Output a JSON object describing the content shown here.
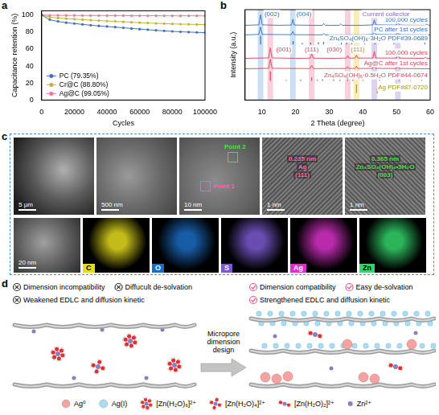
{
  "chart_data": [
    {
      "panel": "a",
      "type": "line",
      "x_label": "Cycles",
      "y_label": "Capacitance retention (%)",
      "x": [
        0,
        5000,
        10000,
        15000,
        20000,
        25000,
        30000,
        35000,
        40000,
        45000,
        50000,
        55000,
        60000,
        65000,
        70000,
        75000,
        80000,
        85000,
        90000,
        95000,
        100000
      ],
      "series": [
        {
          "name": "PC (79.35%)",
          "color": "#3f6fc8",
          "marker": "circle",
          "values": [
            100,
            94.5,
            92.5,
            91,
            90,
            89,
            88,
            87.2,
            86.5,
            85.8,
            85,
            84.2,
            83.5,
            82.7,
            82,
            81.4,
            80.8,
            80.3,
            79.9,
            79.6,
            79.35
          ]
        },
        {
          "name": "Cr@C (88.80%)",
          "color": "#c9b52a",
          "marker": "circle",
          "values": [
            100,
            97.5,
            96.5,
            95.8,
            95.2,
            94.6,
            94,
            93.5,
            93,
            92.5,
            92,
            91.5,
            91,
            90.6,
            90.2,
            89.9,
            89.6,
            89.3,
            89.1,
            88.9,
            88.8
          ]
        },
        {
          "name": "Ag@C (99.05%)",
          "color": "#f07896",
          "marker": "circle",
          "values": [
            100,
            99.7,
            99.6,
            99.5,
            99.5,
            99.4,
            99.4,
            99.4,
            99.3,
            99.3,
            99.3,
            99.2,
            99.2,
            99.2,
            99.2,
            99.1,
            99.1,
            99.1,
            99.1,
            99.05,
            99.05
          ]
        }
      ],
      "xlim": [
        0,
        100000
      ],
      "xticks": [
        0,
        20000,
        40000,
        60000,
        80000,
        100000
      ],
      "ylim": [
        0,
        105
      ],
      "yticks": [
        0,
        20,
        40,
        60,
        80,
        100
      ],
      "legend": "lower left",
      "grid": false
    },
    {
      "panel": "b",
      "type": "line",
      "x_label": "2 Theta (degree)",
      "y_label": "Intensity (a.u.)",
      "xlim": [
        5,
        60
      ],
      "xticks": [
        10,
        20,
        30,
        40,
        50,
        60
      ],
      "ylim": [
        0,
        104
      ],
      "tick_labels": "x",
      "grid": false,
      "series": [
        {
          "name": "100,000 cycles",
          "color": "#2f6fc8",
          "x": [
            5,
            9.1,
            9.6,
            10.1,
            15,
            18.8,
            19.2,
            19.6,
            25,
            28,
            28.4,
            28.8,
            33,
            33.4,
            33.8,
            40,
            43,
            43.4,
            43.8,
            50,
            50.4,
            50.8,
            58.5,
            59,
            59.5,
            60
          ],
          "values": [
            86,
            86.5,
            98,
            86.5,
            86,
            86.3,
            93,
            86.3,
            86,
            86,
            88,
            86,
            86,
            87.5,
            86,
            86,
            86.5,
            92,
            86.5,
            86.3,
            90,
            86.3,
            86,
            87.5,
            86,
            86
          ]
        },
        {
          "name": "PC after 1st cycles",
          "color": "#2f6fc8",
          "x": [
            5,
            9.1,
            9.6,
            10.1,
            18.8,
            19.2,
            19.6,
            28,
            28.4,
            28.8,
            40,
            43,
            43.4,
            43.8,
            50,
            50.4,
            50.8,
            60
          ],
          "values": [
            75,
            75.5,
            84,
            75.5,
            75.2,
            79,
            75.2,
            75,
            76.5,
            75,
            75,
            75.5,
            81,
            75.5,
            75.2,
            78,
            75.2,
            75
          ]
        },
        {
          "name": "Zn₄SO₄(OH)₆·3H₂O PDF#39-0689",
          "type": "stick",
          "color": "#2f6fc8",
          "baseline": 64,
          "x": [
            9.6,
            19.3,
            22,
            24.5,
            26.8,
            28.3,
            33.6,
            35.2,
            36.7,
            40.5,
            43.6,
            49.2,
            58.4
          ],
          "values": [
            10,
            4,
            1.5,
            2,
            2.5,
            3,
            2.5,
            2,
            1.5,
            1,
            1.5,
            1.5,
            2
          ]
        },
        {
          "name": "100,000 cycles",
          "color": "#e0405a",
          "x": [
            5,
            12,
            12.5,
            13,
            20,
            24.3,
            24.8,
            25.3,
            32,
            35.1,
            35.5,
            35.9,
            37.7,
            38.1,
            38.5,
            43,
            43.4,
            43.8,
            50,
            50.4,
            50.8,
            58.2,
            58.6,
            59,
            60
          ],
          "values": [
            48,
            48.5,
            60,
            48.5,
            48,
            48.2,
            53,
            48.2,
            48,
            48.3,
            51,
            48.3,
            48.3,
            51.5,
            48.3,
            48.4,
            56,
            48.4,
            48.3,
            52,
            48.3,
            48,
            49.5,
            48,
            48
          ]
        },
        {
          "name": "Ag@C after 1st cycles",
          "color": "#e0405a",
          "x": [
            5,
            12,
            12.5,
            13,
            24.3,
            24.8,
            25.3,
            35.1,
            35.5,
            35.9,
            37.7,
            38.1,
            38.5,
            43,
            43.4,
            43.8,
            50,
            50.4,
            50.8,
            60
          ],
          "values": [
            36,
            36.5,
            47,
            36.5,
            36.2,
            40,
            36.2,
            36.3,
            38.5,
            36.3,
            36.3,
            39,
            36.3,
            36.4,
            43,
            36.4,
            36.3,
            39.5,
            36.3,
            36
          ]
        },
        {
          "name": "Zn₄SO₄(OH)₆·0.5H₂O PDF#44-0674",
          "type": "stick",
          "color": "#e0405a",
          "baseline": 22,
          "x": [
            12.5,
            17.2,
            21.5,
            24.8,
            26.5,
            28,
            31.3,
            33.2,
            35.5,
            37,
            40,
            45,
            50.8,
            54.2,
            57.5
          ],
          "values": [
            11,
            1,
            1.5,
            4,
            1.5,
            2,
            2,
            1.5,
            3,
            1.5,
            1,
            1,
            1,
            0.8,
            1
          ]
        },
        {
          "name": "Ag PDF#87-0720",
          "type": "stick",
          "color": "#a8921a",
          "baseline": 8,
          "x": [
            38.1,
            44.3
          ],
          "values": [
            10,
            5
          ]
        }
      ],
      "bands": [
        {
          "x": 9.6,
          "color": "#a9c9ef"
        },
        {
          "x": 19.2,
          "color": "#a9c9ef"
        },
        {
          "x": 43.4,
          "color": "#c7b5e6"
        },
        {
          "x": 50.4,
          "color": "#c7b5e6"
        },
        {
          "x": 12.5,
          "color": "#f5b3c4"
        },
        {
          "x": 24.8,
          "color": "#f5b3c4"
        },
        {
          "x": 35.5,
          "color": "#f5b3c4"
        },
        {
          "x": 38.1,
          "color": "#f3e08a"
        }
      ],
      "annotations": [
        {
          "text": "(002)",
          "x": 13,
          "y": 99,
          "color": "#2f6fc8"
        },
        {
          "text": "(004)",
          "x": 22.5,
          "y": 99,
          "color": "#2f6fc8"
        },
        {
          "text": "Current collector",
          "x": 46.9,
          "y": 99,
          "color": "#8a63c8"
        },
        {
          "text": "(001)",
          "x": 16.5,
          "y": 58,
          "color": "#e0405a"
        },
        {
          "text": "(111)",
          "x": 24.8,
          "y": 58,
          "color": "#e0405a"
        },
        {
          "text": "(030)",
          "x": 31.5,
          "y": 58,
          "color": "#e0405a"
        },
        {
          "text": "(111)",
          "x": 38.5,
          "y": 58,
          "color": "#a8921a"
        }
      ]
    }
  ],
  "panel_c": {
    "panel": "c",
    "images": [
      {
        "scale_bar": "5 μm"
      },
      {
        "scale_bar": "500 nm"
      },
      {
        "scale_bar": "10 nm",
        "markers": [
          {
            "text": "Point 2",
            "color": "#46e046"
          },
          {
            "text": "Point 1",
            "color": "#ff5fb0"
          }
        ]
      },
      {
        "scale_bar": "1 nm",
        "lattice": [
          "0.235 nm",
          "Ag",
          "(111)"
        ],
        "color": "#ff5fb0"
      },
      {
        "scale_bar": "1 nm",
        "lattice": [
          "0.365 nm",
          "Zn₄SO₄(OH)₆•5H₂O",
          "(003)"
        ],
        "color": "#46e046"
      }
    ],
    "maps": [
      {
        "scale_bar": "20 nm"
      },
      {
        "element": "C",
        "color": "#e6dc1e"
      },
      {
        "element": "O",
        "color": "#1c6cc4"
      },
      {
        "element": "S",
        "color": "#7b5ad0"
      },
      {
        "element": "Ag",
        "color": "#d832c8"
      },
      {
        "element": "Zn",
        "color": "#33d46a"
      }
    ]
  },
  "panel_d": {
    "panel": "d",
    "before": [
      "Dimension incompatibility",
      "Diffucult de-solvation",
      "Weakened EDLC and diffusion kinetic"
    ],
    "after": [
      "Dimension compatibility",
      "Easy de-solvation",
      "Strengthened EDLC and diffusion kinetic"
    ],
    "arrow_label": "Micropore dimension design",
    "legend": [
      {
        "label": "Ag⁰",
        "color": "#f4a3a3",
        "marker": "ball"
      },
      {
        "label": "Ag(I)",
        "color": "#a9dcf5",
        "marker": "ball"
      },
      {
        "label": "[Zn(H₂O)₆]²⁺",
        "marker": "hexahydrate"
      },
      {
        "label": "[Zn(H₂O)₄]²⁺",
        "marker": "tetrahydrate"
      },
      {
        "label": "[Zn(H₂O)₂]²⁺",
        "marker": "dihydrate"
      },
      {
        "label": "Zn²⁺",
        "color": "#8a7fc0",
        "marker": "dot"
      }
    ]
  }
}
